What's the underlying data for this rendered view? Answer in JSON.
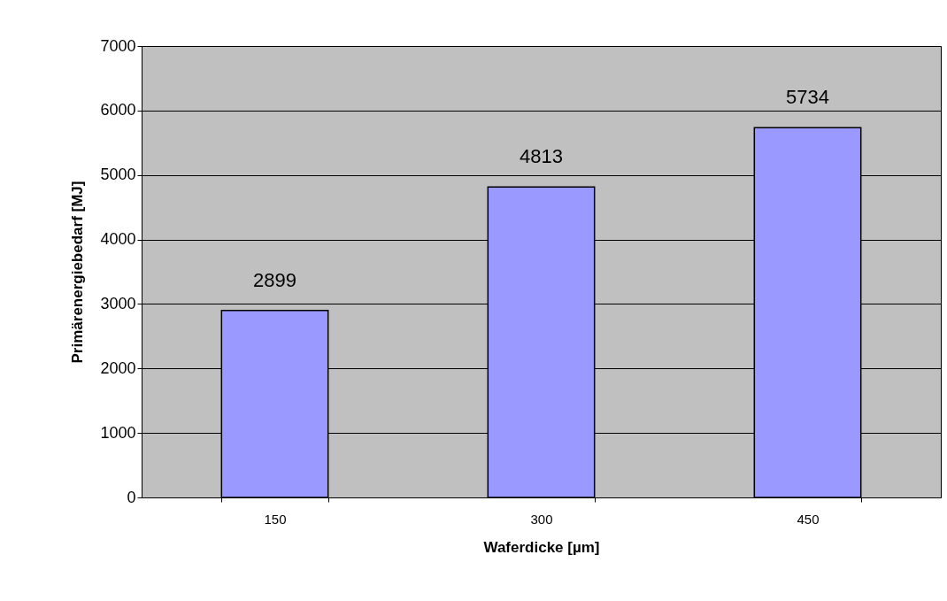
{
  "chart_data": {
    "type": "bar",
    "xlabel": "Waferdicke [µm]",
    "ylabel": "Primärenergiebedarf [MJ]",
    "categories": [
      "150",
      "300",
      "450"
    ],
    "values": [
      2899,
      4813,
      5734
    ],
    "color": "#9999ff",
    "ylim": [
      0,
      7000
    ],
    "yticks": [
      0,
      1000,
      2000,
      3000,
      4000,
      5000,
      6000,
      7000
    ],
    "grid": "y",
    "data_labels": true
  }
}
